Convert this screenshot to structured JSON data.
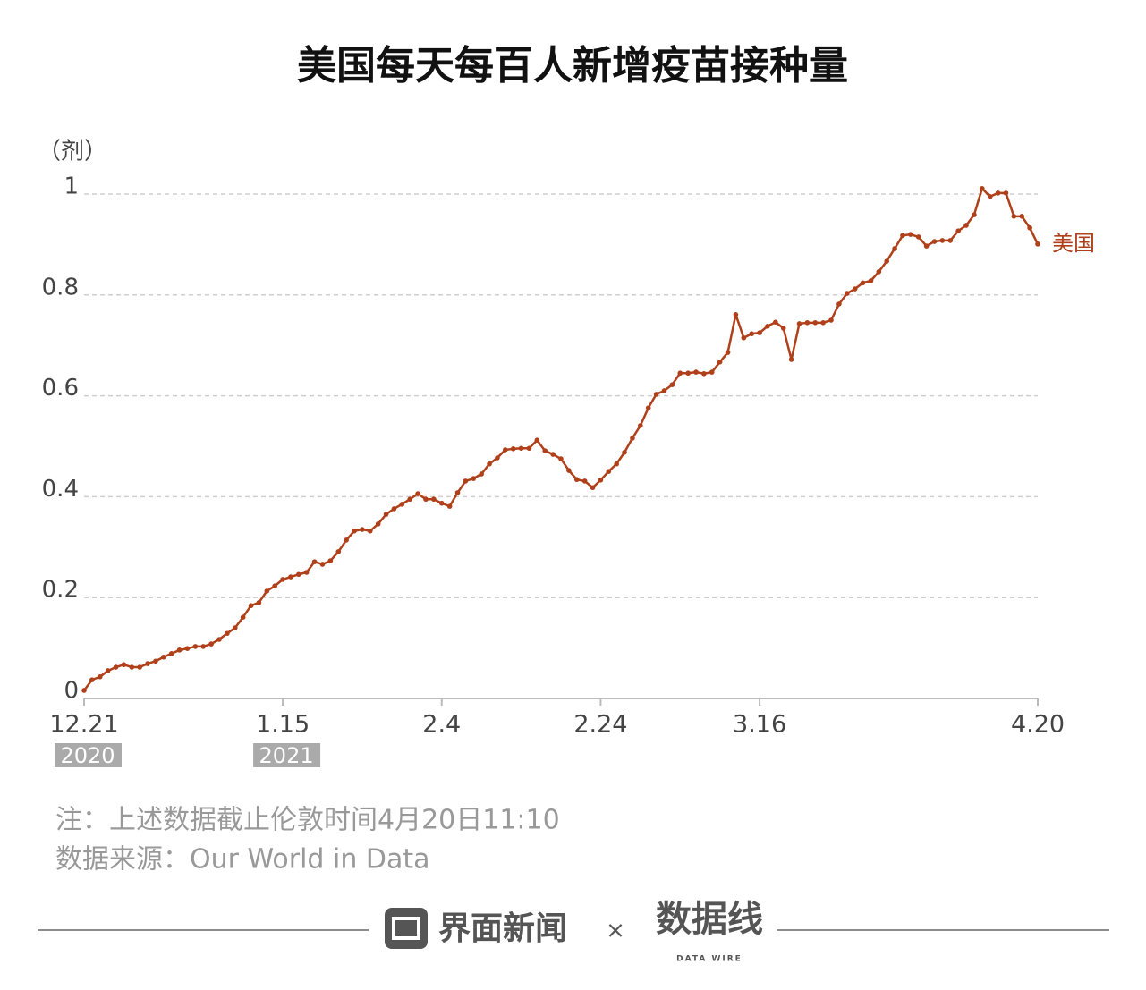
{
  "chart_data": {
    "type": "line",
    "title": "美国每天每百人新增疫苗接种量",
    "y_label": "（剂）",
    "categories": [
      "12.21",
      null,
      null,
      null,
      null,
      null,
      null,
      null,
      null,
      null,
      null,
      null,
      null,
      null,
      null,
      null,
      null,
      null,
      null,
      null,
      null,
      null,
      null,
      null,
      null,
      "1.15",
      null,
      null,
      null,
      null,
      null,
      null,
      null,
      null,
      null,
      null,
      null,
      null,
      null,
      null,
      null,
      null,
      null,
      null,
      null,
      "2.4",
      null,
      null,
      null,
      null,
      null,
      null,
      null,
      null,
      null,
      null,
      null,
      null,
      null,
      null,
      null,
      null,
      null,
      null,
      null,
      "2.24",
      null,
      null,
      null,
      null,
      null,
      null,
      null,
      null,
      null,
      null,
      null,
      null,
      null,
      null,
      null,
      null,
      null,
      null,
      null,
      "3.16",
      null,
      null,
      null,
      null,
      null,
      null,
      null,
      null,
      null,
      null,
      null,
      null,
      null,
      null,
      null,
      null,
      null,
      null,
      null,
      null,
      null,
      null,
      null,
      null,
      null,
      null,
      null,
      null,
      null,
      null,
      null,
      null,
      null,
      null,
      "4.20"
    ],
    "series": [
      {
        "name": "美国",
        "color": "#b0401a",
        "values": [
          0.016,
          0.037,
          0.043,
          0.055,
          0.062,
          0.067,
          0.062,
          0.062,
          0.069,
          0.074,
          0.082,
          0.089,
          0.096,
          0.099,
          0.103,
          0.103,
          0.108,
          0.117,
          0.129,
          0.14,
          0.161,
          0.184,
          0.19,
          0.213,
          0.223,
          0.236,
          0.241,
          0.246,
          0.25,
          0.271,
          0.266,
          0.273,
          0.291,
          0.314,
          0.332,
          0.335,
          0.332,
          0.346,
          0.365,
          0.376,
          0.385,
          0.395,
          0.406,
          0.395,
          0.395,
          0.387,
          0.381,
          0.408,
          0.431,
          0.436,
          0.445,
          0.465,
          0.477,
          0.493,
          0.495,
          0.496,
          0.496,
          0.512,
          0.491,
          0.484,
          0.475,
          0.452,
          0.434,
          0.431,
          0.418,
          0.433,
          0.45,
          0.465,
          0.488,
          0.516,
          0.541,
          0.576,
          0.603,
          0.61,
          0.622,
          0.645,
          0.645,
          0.647,
          0.644,
          0.647,
          0.667,
          0.686,
          0.761,
          0.715,
          0.723,
          0.725,
          0.738,
          0.746,
          0.734,
          0.672,
          0.743,
          0.745,
          0.745,
          0.745,
          0.75,
          0.782,
          0.803,
          0.812,
          0.824,
          0.828,
          0.846,
          0.867,
          0.892,
          0.918,
          0.92,
          0.915,
          0.897,
          0.906,
          0.908,
          0.908,
          0.927,
          0.938,
          0.959,
          1.011,
          0.995,
          1.002,
          1.002,
          0.956,
          0.956,
          0.933,
          0.901
        ]
      }
    ],
    "ylim": [
      0,
      1.05
    ],
    "yticks": [
      0,
      0.2,
      0.4,
      0.6,
      0.8,
      1
    ],
    "grid": true,
    "annotations": [
      {
        "x": "12.21",
        "text": "2020"
      },
      {
        "x": "1.15",
        "text": "2021"
      }
    ]
  },
  "notes": [
    "注：上述数据截止伦敦时间4月20日11:10",
    "数据来源：Our World in Data"
  ],
  "footer": {
    "brand": "界面新闻",
    "separator": "×",
    "partner": "数据线",
    "partner_sub": "DATA WIRE"
  }
}
